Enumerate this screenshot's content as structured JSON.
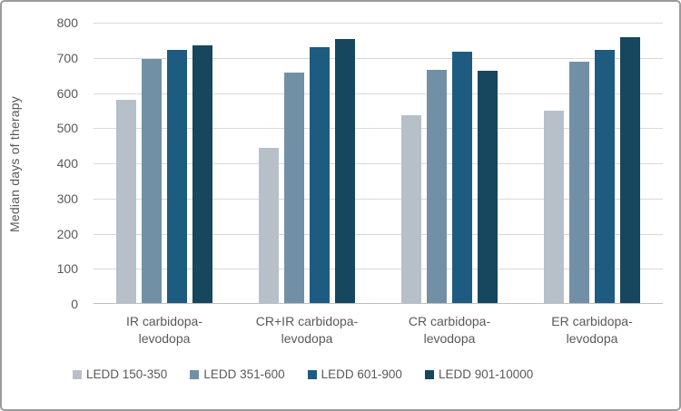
{
  "chart_data": {
    "type": "bar",
    "title": "",
    "xlabel": "",
    "ylabel": "Median days of therapy",
    "ylim": [
      0,
      800
    ],
    "ytick_step": 100,
    "grid": true,
    "legend_position": "bottom",
    "categories": [
      "IR carbidopa-levodopa",
      "CR+IR carbidopa-levodopa",
      "CR carbidopa-levodopa",
      "ER carbidopa-levodopa"
    ],
    "category_label_lines": [
      [
        "IR carbidopa-",
        "levodopa"
      ],
      [
        "CR+IR carbidopa-",
        "levodopa"
      ],
      [
        "CR carbidopa-",
        "levodopa"
      ],
      [
        "ER carbidopa-",
        "levodopa"
      ]
    ],
    "series": [
      {
        "name": "LEDD 150-350",
        "color": "#b7c0c9",
        "values": [
          578,
          440,
          535,
          547
        ]
      },
      {
        "name": "LEDD 351-600",
        "color": "#7290a5",
        "values": [
          695,
          655,
          663,
          686
        ]
      },
      {
        "name": "LEDD 601-900",
        "color": "#1d5c80",
        "values": [
          720,
          727,
          714,
          720
        ]
      },
      {
        "name": "LEDD 901-10000",
        "color": "#17465f",
        "values": [
          732,
          752,
          660,
          756
        ]
      }
    ],
    "colors": {
      "gridline": "#d9d9d9",
      "axis_line": "#bfbfbf",
      "text": "#595959",
      "figure_border": "#9b9b9b",
      "background": "#ffffff"
    }
  }
}
